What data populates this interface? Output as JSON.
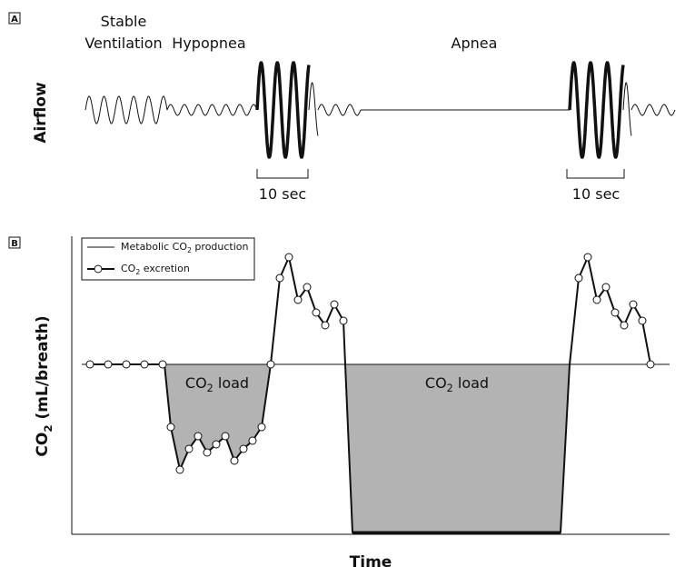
{
  "panel_a": {
    "tag": "A",
    "phase_stable": "Stable",
    "phase_ventilation": "Ventilation",
    "phase_hypopnea": "Hypopnea",
    "phase_apnea": "Apnea",
    "y_label": "Airflow",
    "bracket_1": "10 sec",
    "bracket_2": "10 sec"
  },
  "panel_b": {
    "tag": "B",
    "y_label_prefix": "CO",
    "y_label_sub": "2",
    "y_label_suffix": " (mL/breath)",
    "x_label": "Time",
    "legend": {
      "metabolic_prefix": "Metabolic CO",
      "metabolic_sub": "2",
      "metabolic_suffix": " production",
      "excretion_prefix": "CO",
      "excretion_sub": "2",
      "excretion_suffix": " excretion"
    },
    "load_1_prefix": "CO",
    "load_1_sub": "2",
    "load_1_suffix": " load",
    "load_2_prefix": "CO",
    "load_2_sub": "2",
    "load_2_suffix": " load"
  },
  "colors": {
    "line": "#111111",
    "load_fill": "#b3b3b3",
    "marker_fill": "#ffffff"
  }
}
